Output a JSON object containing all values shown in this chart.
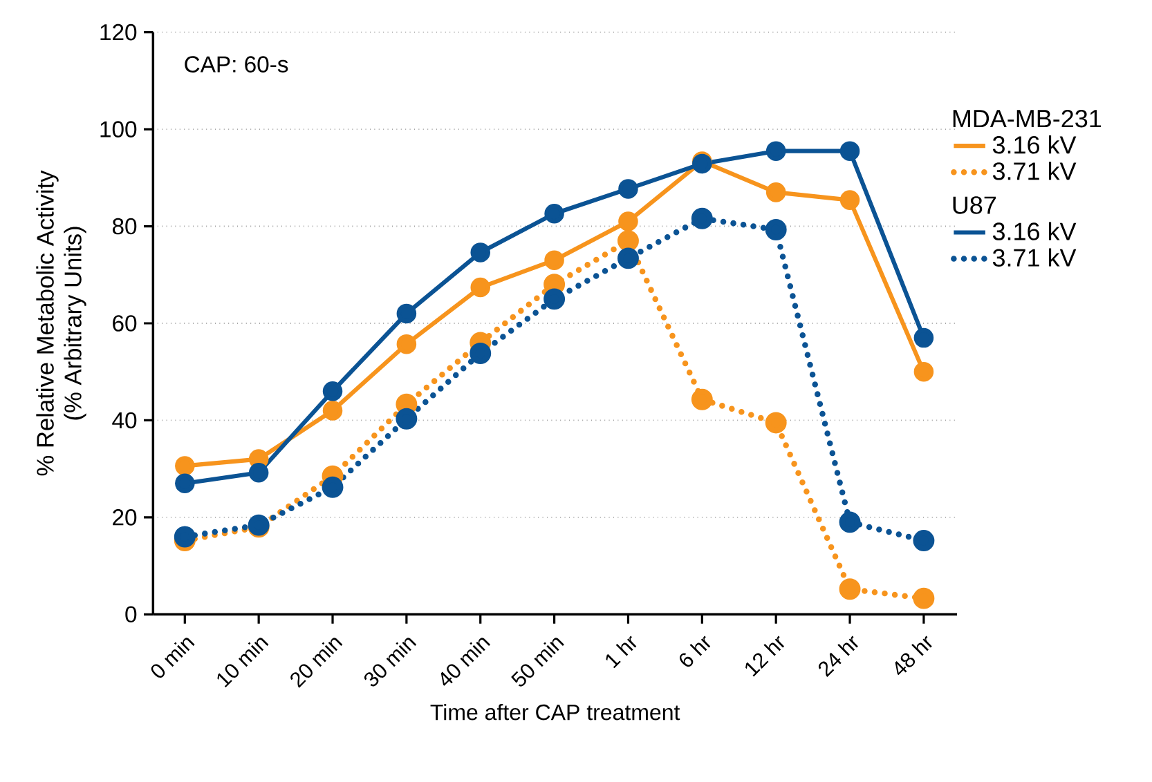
{
  "chart_data": {
    "type": "line",
    "xlabel": "Time after CAP treatment",
    "ylabel": "% Relative Metabolic Activity\n(% Arbitrary Units)",
    "categories": [
      "0 min",
      "10 min",
      "20 min",
      "30 min",
      "40 min",
      "50 min",
      "1 hr",
      "6 hr",
      "12 hr",
      "24 hr",
      "48 hr"
    ],
    "series": [
      {
        "name": "3.16 kV",
        "color": "#f7941d",
        "line_style": "solid",
        "values": [
          30.6,
          32,
          42,
          55.7,
          67.4,
          73,
          81,
          93.4,
          87,
          85.4,
          50
        ]
      },
      {
        "name": "3.71 kV",
        "color": "#f7941d",
        "line_style": "dotted",
        "values": [
          15.2,
          18,
          28.5,
          43.3,
          56,
          68,
          77,
          44.3,
          39.5,
          5.2,
          3.3
        ]
      },
      {
        "name": "3.16 kV",
        "color": "#0b5394",
        "line_style": "solid",
        "values": [
          27,
          29.2,
          46,
          62,
          74.6,
          82.6,
          87.7,
          92.9,
          95.5,
          95.5,
          57
        ]
      },
      {
        "name": "3.71 kV",
        "color": "#0b5394",
        "line_style": "dotted",
        "values": [
          16,
          18.4,
          26.2,
          40.3,
          53.8,
          65,
          73.4,
          81.6,
          79.3,
          19,
          15.2
        ]
      }
    ],
    "annotations": [
      "CAP: 60-s",
      "MDA-MB-231",
      "U87"
    ],
    "ylim": [
      0,
      120
    ],
    "yticks": [
      0,
      20,
      40,
      60,
      80,
      100,
      120
    ],
    "grid": "y",
    "legend": "right",
    "marker": "circle"
  }
}
